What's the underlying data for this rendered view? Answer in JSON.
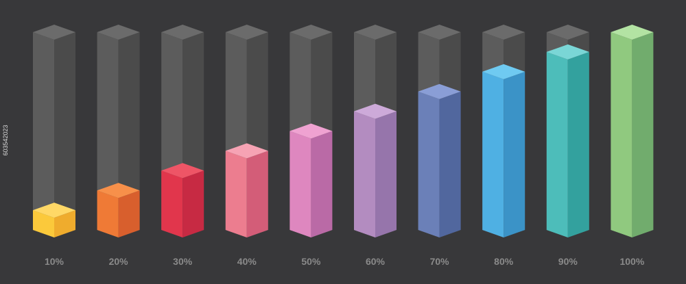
{
  "chart_data": {
    "type": "bar",
    "style": "3d-isometric-columns",
    "categories": [
      "10%",
      "20%",
      "30%",
      "40%",
      "50%",
      "60%",
      "70%",
      "80%",
      "90%",
      "100%"
    ],
    "values": [
      10,
      20,
      30,
      40,
      50,
      60,
      70,
      80,
      90,
      100
    ],
    "ylim": [
      0,
      100
    ],
    "grid": false,
    "legend": "none",
    "background": "#38383a",
    "track_colors": {
      "top": "#6b6b6b",
      "left": "#5c5c5c",
      "right": "#4b4b4b"
    },
    "bar_colors": [
      {
        "top": "#ffd866",
        "left": "#fbc93b",
        "right": "#efac2d"
      },
      {
        "top": "#f7904a",
        "left": "#ef7a36",
        "right": "#d85f2d"
      },
      {
        "top": "#ee5566",
        "left": "#e1364c",
        "right": "#c72a43"
      },
      {
        "top": "#f6a3b4",
        "left": "#ec7d8f",
        "right": "#d35d78"
      },
      {
        "top": "#efa2d1",
        "left": "#de87bf",
        "right": "#ba6aa6"
      },
      {
        "top": "#cdaad9",
        "left": "#b38cc0",
        "right": "#9675ab"
      },
      {
        "top": "#8a9ed6",
        "left": "#6b80b8",
        "right": "#51679e"
      },
      {
        "top": "#6fcaf1",
        "left": "#4fb0e3",
        "right": "#3b93c7"
      },
      {
        "top": "#7ad6d6",
        "left": "#4dbdba",
        "right": "#33a19e"
      },
      {
        "top": "#b3e3a3",
        "left": "#90c97f",
        "right": "#71ac6d"
      }
    ]
  },
  "watermark": {
    "id_text": "603542023"
  }
}
